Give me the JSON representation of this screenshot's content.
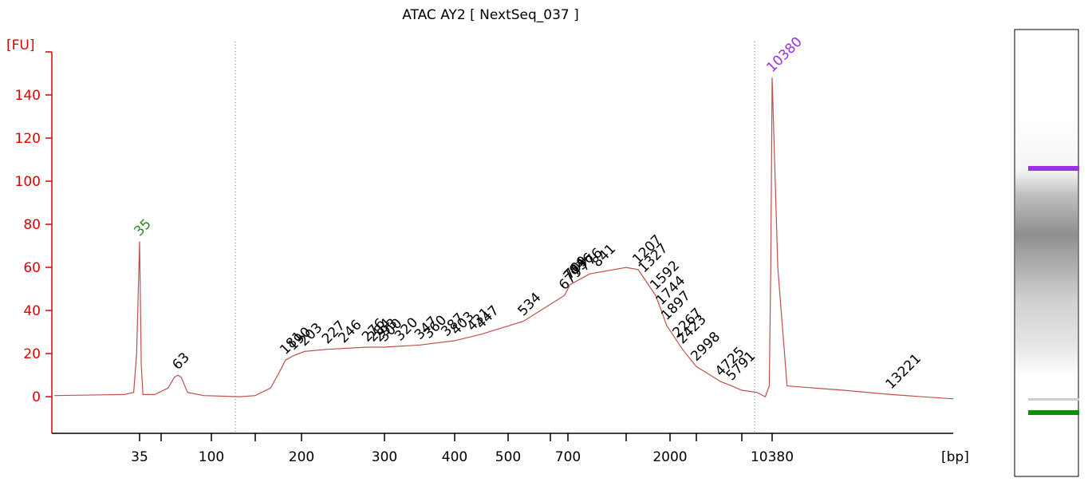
{
  "chart_data": {
    "type": "line",
    "title": "ATAC AY2  [ NextSeq_037 ]",
    "y_label": "[FU]",
    "x_label": "[bp]",
    "xscale": "ladder",
    "xlim": [
      15,
      15000
    ],
    "ylim": [
      -17,
      160
    ],
    "yticks": [
      0,
      20,
      40,
      60,
      80,
      100,
      120,
      140
    ],
    "xticks": [
      35,
      {
        "value": 50,
        "label": null
      },
      100,
      {
        "value": 150,
        "label": null
      },
      200,
      300,
      400,
      500,
      {
        "value": 600,
        "label": null
      },
      700,
      {
        "value": 1000,
        "label": null
      },
      2000,
      {
        "value": 3000,
        "label": null
      },
      {
        "value": 7000,
        "label": null
      },
      10380
    ],
    "axis_color": "#e00000",
    "series": [
      {
        "name": "ATAC AY2",
        "color": "#c0504d",
        "x": [
          15,
          30,
          33,
          34,
          35,
          36,
          37,
          45,
          55,
          60,
          63,
          66,
          72,
          90,
          130,
          150,
          165,
          175,
          181,
          190,
          203,
          227,
          276,
          300,
          347,
          400,
          447,
          534,
          679,
          709,
          800,
          1000,
          1207,
          1327,
          1592,
          1744,
          1897,
          2267,
          2423,
          2998,
          4725,
          5791,
          7000,
          8500,
          9500,
          10000,
          10200,
          10380,
          10500,
          10700,
          12000,
          13221,
          15000
        ],
        "values": [
          0.5,
          1,
          2,
          20,
          72,
          15,
          1,
          1,
          4,
          9,
          10,
          9,
          2,
          0.5,
          0,
          0.5,
          4,
          12,
          17,
          19,
          21,
          22,
          23,
          23,
          24,
          26,
          29,
          35,
          47,
          52,
          57,
          60,
          59,
          55,
          47,
          40,
          33,
          25,
          22,
          14,
          7,
          5,
          3,
          2,
          0,
          5,
          60,
          148,
          60,
          5,
          3,
          1,
          -1
        ]
      }
    ],
    "peaks": [
      35,
      63,
      181,
      190,
      203,
      227,
      246,
      276,
      284,
      293,
      300,
      320,
      347,
      360,
      387,
      403,
      431,
      447,
      534,
      679,
      704,
      709,
      736,
      776,
      841,
      1207,
      1327,
      1592,
      1744,
      1897,
      2267,
      2423,
      2998,
      4725,
      5791,
      10380,
      13221
    ],
    "peak_colors": [
      "#2a8a2a",
      "#000000",
      "#000000",
      "#000000",
      "#000000",
      "#000000",
      "#000000",
      "#000000",
      "#000000",
      "#000000",
      "#000000",
      "#000000",
      "#000000",
      "#000000",
      "#000000",
      "#000000",
      "#000000",
      "#000000",
      "#000000",
      "#000000",
      "#000000",
      "#000000",
      "#000000",
      "#000000",
      "#000000",
      "#000000",
      "#000000",
      "#000000",
      "#000000",
      "#000000",
      "#000000",
      "#000000",
      "#000000",
      "#000000",
      "#000000",
      "#9b30e0",
      "#000000"
    ]
  }
}
